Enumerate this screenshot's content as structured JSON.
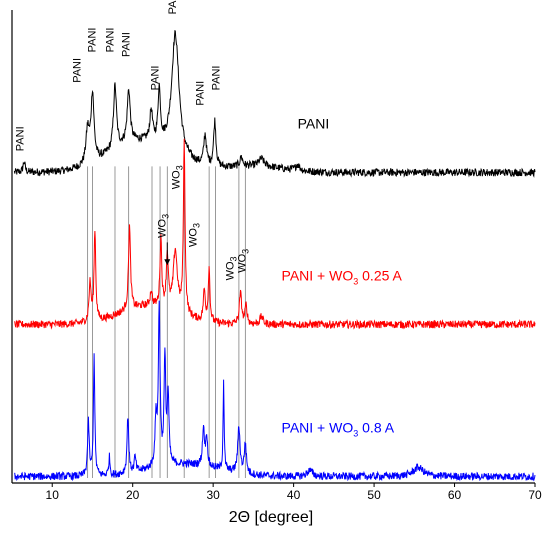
{
  "chart_data": {
    "type": "line",
    "xlabel": "2Θ [degree]",
    "ylabel": "",
    "xlim": [
      5,
      70
    ],
    "xticks": [
      "10",
      "20",
      "30",
      "40",
      "50",
      "60",
      "70"
    ],
    "xtick_values": [
      10,
      20,
      30,
      40,
      50,
      60,
      70
    ],
    "grid": false,
    "offset_baselines": [
      0.0,
      1.0,
      2.0
    ],
    "series": [
      {
        "name": "PANI",
        "color": "#000000",
        "baseline": 2.0,
        "noise": 0.05,
        "peaks": [
          {
            "x": 6.5,
            "h": 0.07,
            "w": 0.3
          },
          {
            "x": 14.4,
            "h": 0.22,
            "w": 0.5
          },
          {
            "x": 15.0,
            "h": 0.45,
            "w": 0.45
          },
          {
            "x": 17.8,
            "h": 0.42,
            "w": 0.45
          },
          {
            "x": 19.5,
            "h": 0.35,
            "w": 0.45
          },
          {
            "x": 22.3,
            "h": 0.2,
            "w": 0.4
          },
          {
            "x": 23.3,
            "h": 0.35,
            "w": 0.35
          },
          {
            "x": 25.3,
            "h": 0.8,
            "w": 1.1
          },
          {
            "x": 29.0,
            "h": 0.2,
            "w": 0.4
          },
          {
            "x": 30.2,
            "h": 0.3,
            "w": 0.35
          },
          {
            "x": 33.5,
            "h": 0.06,
            "w": 0.4
          },
          {
            "x": 36.0,
            "h": 0.05,
            "w": 0.8
          },
          {
            "x": 40.5,
            "h": 0.04,
            "w": 0.6
          }
        ],
        "humps": [
          {
            "x": 21.0,
            "h": 0.2,
            "w": 5.5
          },
          {
            "x": 35.0,
            "h": 0.04,
            "w": 5.0
          }
        ]
      },
      {
        "name": "PANI + WO₃ 0.25 A",
        "color": "#ff0000",
        "baseline": 1.0,
        "noise": 0.05,
        "peaks": [
          {
            "x": 14.7,
            "h": 0.25,
            "w": 0.3
          },
          {
            "x": 15.3,
            "h": 0.6,
            "w": 0.25
          },
          {
            "x": 19.6,
            "h": 0.55,
            "w": 0.3
          },
          {
            "x": 22.3,
            "h": 0.1,
            "w": 0.3
          },
          {
            "x": 23.5,
            "h": 0.45,
            "w": 0.25
          },
          {
            "x": 24.3,
            "h": 0.35,
            "w": 0.3
          },
          {
            "x": 25.3,
            "h": 0.4,
            "w": 0.6
          },
          {
            "x": 26.4,
            "h": 1.12,
            "w": 0.25
          },
          {
            "x": 28.9,
            "h": 0.2,
            "w": 0.3
          },
          {
            "x": 29.5,
            "h": 0.35,
            "w": 0.25
          },
          {
            "x": 33.4,
            "h": 0.2,
            "w": 0.35
          },
          {
            "x": 34.1,
            "h": 0.12,
            "w": 0.3
          },
          {
            "x": 36.0,
            "h": 0.05,
            "w": 0.5
          }
        ],
        "humps": [
          {
            "x": 22.0,
            "h": 0.12,
            "w": 5.0
          }
        ]
      },
      {
        "name": "PANI + WO₃ 0.8 A",
        "color": "#0000ff",
        "baseline": 0.0,
        "noise": 0.05,
        "peaks": [
          {
            "x": 14.5,
            "h": 0.35,
            "w": 0.25
          },
          {
            "x": 15.2,
            "h": 0.8,
            "w": 0.2
          },
          {
            "x": 17.1,
            "h": 0.12,
            "w": 0.2
          },
          {
            "x": 19.4,
            "h": 0.38,
            "w": 0.25
          },
          {
            "x": 20.3,
            "h": 0.1,
            "w": 0.25
          },
          {
            "x": 22.9,
            "h": 0.3,
            "w": 0.3
          },
          {
            "x": 23.3,
            "h": 1.03,
            "w": 0.25
          },
          {
            "x": 24.0,
            "h": 0.7,
            "w": 0.25
          },
          {
            "x": 24.4,
            "h": 0.45,
            "w": 0.25
          },
          {
            "x": 28.8,
            "h": 0.25,
            "w": 0.3
          },
          {
            "x": 29.2,
            "h": 0.2,
            "w": 0.25
          },
          {
            "x": 31.3,
            "h": 0.6,
            "w": 0.15
          },
          {
            "x": 33.2,
            "h": 0.3,
            "w": 0.35
          },
          {
            "x": 34.0,
            "h": 0.2,
            "w": 0.3
          },
          {
            "x": 42.0,
            "h": 0.04,
            "w": 0.8
          },
          {
            "x": 55.5,
            "h": 0.06,
            "w": 1.5
          }
        ],
        "humps": [
          {
            "x": 26.5,
            "h": 0.08,
            "w": 6.0
          }
        ]
      }
    ],
    "series_labels": [
      {
        "text": "PANI",
        "sub": "",
        "after": "",
        "x": 40.5,
        "y": 2.3,
        "color": "#000000"
      },
      {
        "text": "PANI + WO",
        "sub": "3",
        "after": " 0.25 A",
        "x": 38.5,
        "y": 1.3,
        "color": "#ff0000"
      },
      {
        "text": "PANI + WO",
        "sub": "3",
        "after": " 0.8 A",
        "x": 38.5,
        "y": 0.3,
        "color": "#0000ff"
      }
    ],
    "reference_lines": [
      14.4,
      15.0,
      17.8,
      19.5,
      22.4,
      23.4,
      24.3,
      26.4,
      29.5,
      30.3,
      33.2,
      34.0
    ],
    "annotations": [
      {
        "text": "PANI",
        "sub": "",
        "x": 6.4,
        "y": 2.15
      },
      {
        "text": "PANI",
        "sub": "",
        "x": 13.5,
        "y": 2.6
      },
      {
        "text": "PANI",
        "sub": "",
        "x": 15.4,
        "y": 2.8
      },
      {
        "text": "PANI",
        "sub": "",
        "x": 17.6,
        "y": 2.8
      },
      {
        "text": "PANI",
        "sub": "",
        "x": 19.6,
        "y": 2.77
      },
      {
        "text": "PANI",
        "sub": "",
        "x": 23.2,
        "y": 2.55
      },
      {
        "text": "PANI",
        "sub": "",
        "x": 25.4,
        "y": 3.05
      },
      {
        "text": "PANI",
        "sub": "",
        "x": 28.8,
        "y": 2.45
      },
      {
        "text": "PANI",
        "sub": "",
        "x": 30.8,
        "y": 2.55
      },
      {
        "text": "WO",
        "sub": "3",
        "x": 25.8,
        "y": 1.9
      },
      {
        "text": "WO",
        "sub": "3",
        "x": 24.1,
        "y": 1.58
      },
      {
        "text": "WO",
        "sub": "3",
        "x": 27.9,
        "y": 1.52
      },
      {
        "text": "WO",
        "sub": "3",
        "x": 32.5,
        "y": 1.3
      },
      {
        "text": "WO",
        "sub": "3",
        "x": 34.0,
        "y": 1.35
      }
    ],
    "arrow": {
      "x": 24.3,
      "y_from": 1.55,
      "y_to": 1.4
    }
  }
}
